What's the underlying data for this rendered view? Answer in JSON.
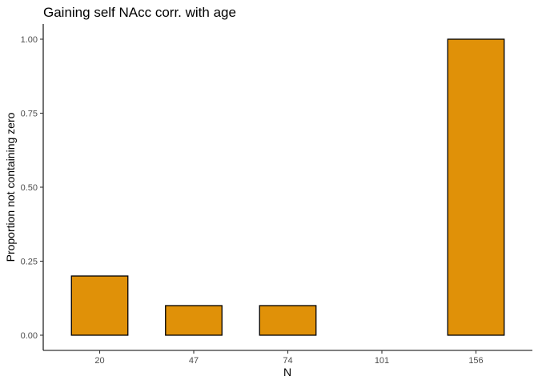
{
  "chart_data": {
    "type": "bar",
    "title": "Gaining self NAcc corr. with age",
    "xlabel": "N",
    "ylabel": "Proportion not containing zero",
    "categories": [
      "20",
      "47",
      "74",
      "101",
      "156"
    ],
    "values": [
      0.2,
      0.1,
      0.1,
      0.0,
      1.0
    ],
    "ylim": [
      0,
      1
    ],
    "yticks": [
      0.0,
      0.25,
      0.5,
      0.75,
      1.0
    ],
    "ytick_labels": [
      "0.00",
      "0.25",
      "0.50",
      "0.75",
      "1.00"
    ],
    "grid": false,
    "legend": "none",
    "bar_color": "#E09108",
    "bar_edge_color": "#000000"
  }
}
